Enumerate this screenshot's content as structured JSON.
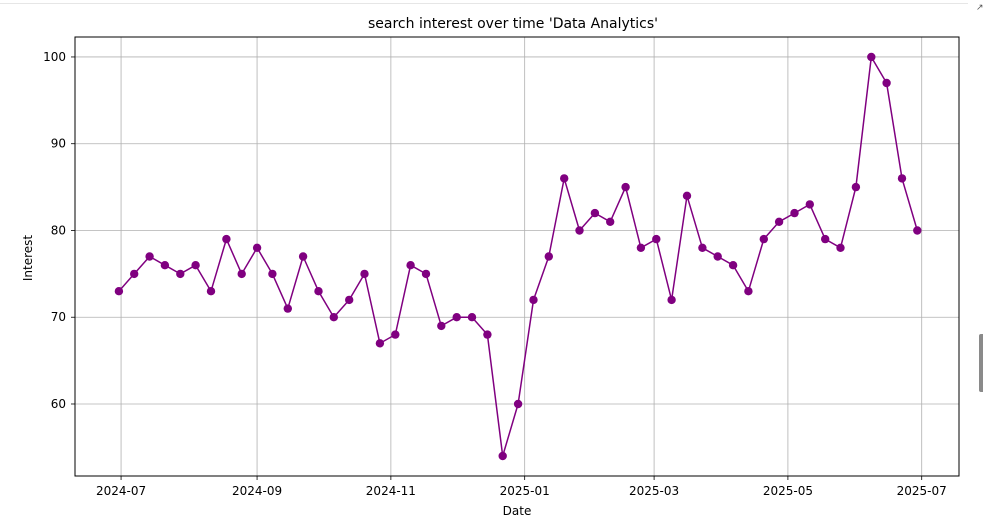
{
  "chart_data": {
    "type": "line",
    "title": "search interest over time 'Data Analytics'",
    "xlabel": "Date",
    "ylabel": "Interest",
    "grid": true,
    "color": "#800080",
    "x_ticks": [
      "2024-07",
      "2024-09",
      "2024-11",
      "2025-01",
      "2025-03",
      "2025-05",
      "2025-07"
    ],
    "y_ticks": [
      60,
      70,
      80,
      90,
      100
    ],
    "xlim": [
      "2024-06-10",
      "2025-07-18"
    ],
    "ylim": [
      51.7,
      102.3
    ],
    "series": [
      {
        "x": [
          "2024-06-30",
          "2024-07-07",
          "2024-07-14",
          "2024-07-21",
          "2024-07-28",
          "2024-08-04",
          "2024-08-11",
          "2024-08-18",
          "2024-08-25",
          "2024-09-01",
          "2024-09-08",
          "2024-09-15",
          "2024-09-22",
          "2024-09-29",
          "2024-10-06",
          "2024-10-13",
          "2024-10-20",
          "2024-10-27",
          "2024-11-03",
          "2024-11-10",
          "2024-11-17",
          "2024-11-24",
          "2024-12-01",
          "2024-12-08",
          "2024-12-15",
          "2024-12-22",
          "2024-12-29",
          "2025-01-05",
          "2025-01-12",
          "2025-01-19",
          "2025-01-26",
          "2025-02-02",
          "2025-02-09",
          "2025-02-16",
          "2025-02-23",
          "2025-03-02",
          "2025-03-09",
          "2025-03-16",
          "2025-03-23",
          "2025-03-30",
          "2025-04-06",
          "2025-04-13",
          "2025-04-20",
          "2025-04-27",
          "2025-05-04",
          "2025-05-11",
          "2025-05-18",
          "2025-05-25",
          "2025-06-01",
          "2025-06-08",
          "2025-06-15",
          "2025-06-22",
          "2025-06-29"
        ],
        "values": [
          73,
          75,
          77,
          76,
          75,
          76,
          73,
          79,
          75,
          78,
          75,
          71,
          77,
          73,
          70,
          72,
          75,
          67,
          68,
          76,
          75,
          69,
          70,
          70,
          68,
          54,
          60,
          72,
          77,
          86,
          80,
          82,
          81,
          85,
          78,
          79,
          72,
          84,
          78,
          77,
          76,
          73,
          79,
          81,
          82,
          83,
          79,
          78,
          85,
          100,
          97,
          86,
          80
        ]
      }
    ]
  }
}
